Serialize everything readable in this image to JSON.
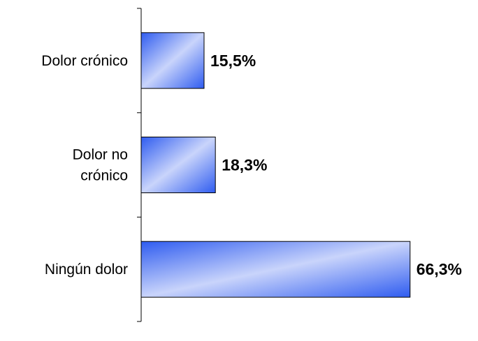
{
  "chart_data": {
    "type": "bar",
    "orientation": "horizontal",
    "categories": [
      [
        "Dolor crónico"
      ],
      [
        "Dolor no",
        "crónico"
      ],
      [
        "Ningún dolor"
      ]
    ],
    "values": [
      15.5,
      18.3,
      66.3
    ],
    "value_labels": [
      "15,5%",
      "18,3%",
      "66,3%"
    ],
    "xlim": [
      0,
      67.2
    ],
    "grid": false,
    "legend": "none"
  },
  "colors": {
    "bar_dark": "#2f5cf0",
    "bar_light": "#c9d4fb",
    "bar_border": "#000000"
  }
}
